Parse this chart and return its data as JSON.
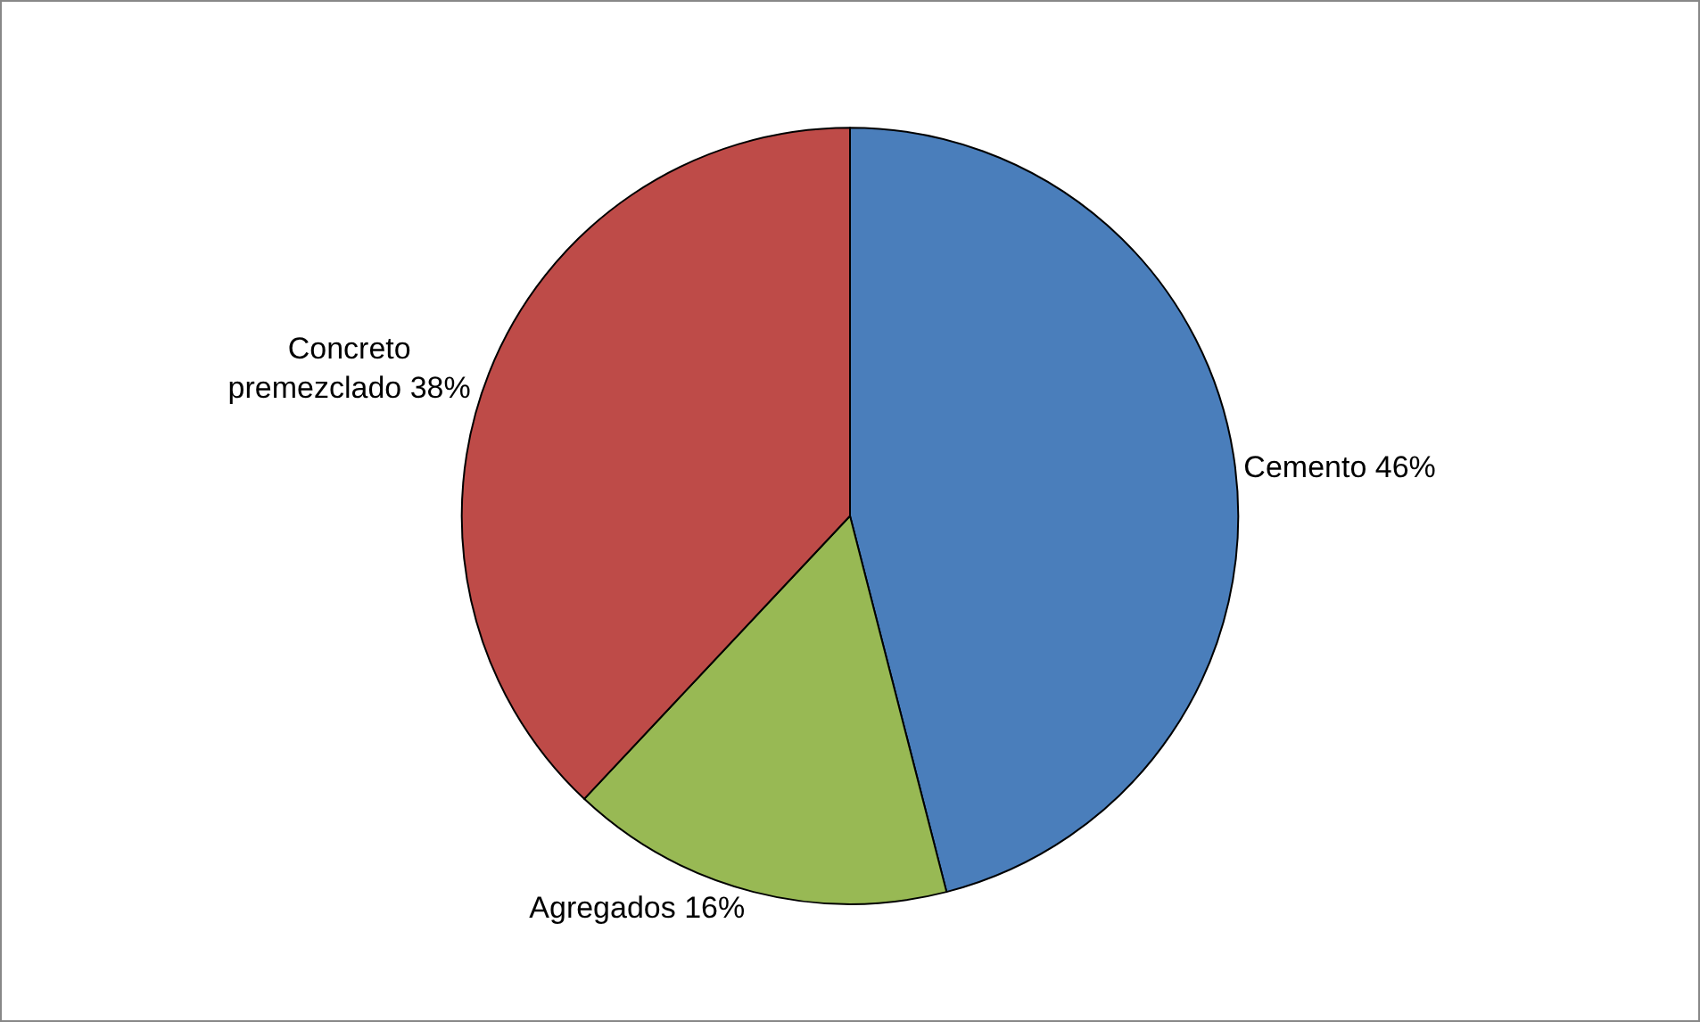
{
  "chart_data": {
    "type": "pie",
    "categories": [
      "Cemento",
      "Agregados",
      "Concreto premezclado"
    ],
    "values": [
      46,
      16,
      38
    ],
    "value_labels": [
      "46%",
      "16%",
      "38%"
    ],
    "colors": [
      "#4a7ebb",
      "#98b954",
      "#be4b48"
    ],
    "legend": false
  }
}
